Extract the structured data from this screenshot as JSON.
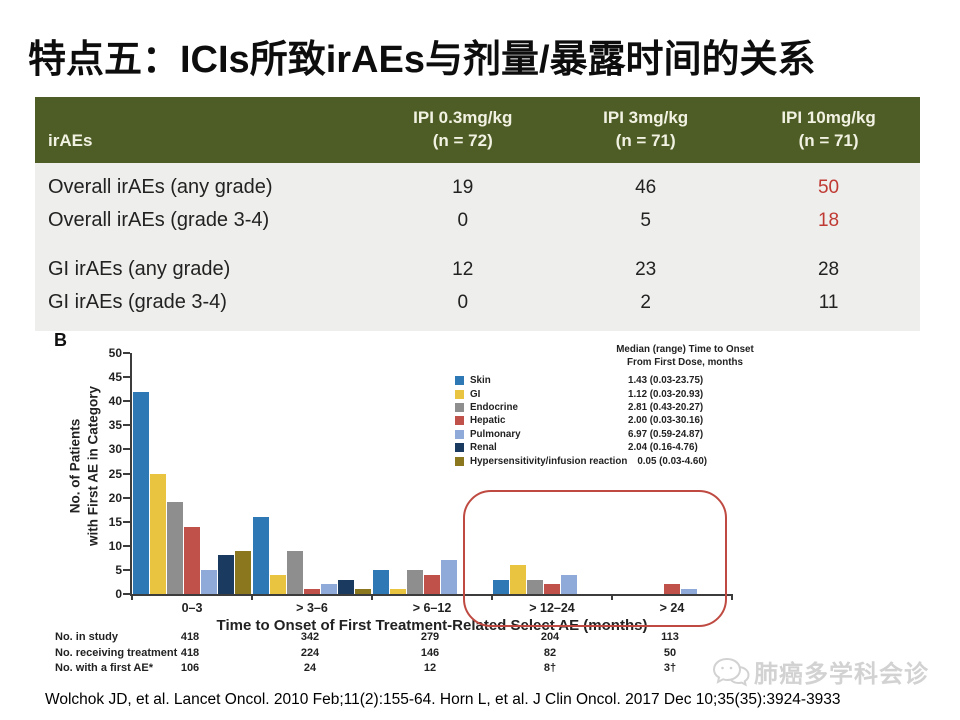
{
  "title": "特点五：ICIs所致irAEs与剂量/暴露时间的关系",
  "table": {
    "header_first": "irAEs",
    "columns": [
      {
        "dose": "IPI 0.3mg/kg",
        "n": "(n = 72)"
      },
      {
        "dose": "IPI 3mg/kg",
        "n": "(n = 71)"
      },
      {
        "dose": "IPI 10mg/kg",
        "n": "(n = 71)"
      }
    ],
    "rows": [
      {
        "label": "Overall irAEs (any grade)",
        "values": [
          "19",
          "46",
          "50"
        ],
        "red": [
          false,
          false,
          true
        ],
        "gap_before": false
      },
      {
        "label": "Overall irAEs (grade 3-4)",
        "values": [
          "0",
          "5",
          "18"
        ],
        "red": [
          false,
          false,
          true
        ],
        "gap_before": false
      },
      {
        "label": "GI irAEs (any grade)",
        "values": [
          "12",
          "23",
          "28"
        ],
        "red": [
          false,
          false,
          false
        ],
        "gap_before": true
      },
      {
        "label": "GI irAEs (grade 3-4)",
        "values": [
          "0",
          "2",
          "11"
        ],
        "red": [
          false,
          false,
          false
        ],
        "gap_before": false
      }
    ],
    "colors": {
      "header_bg": "#4e5d26",
      "header_fg": "#f2f2e3",
      "body_bg": "#eeeeec",
      "highlight_red": "#c03a34"
    }
  },
  "chart_data": {
    "type": "bar",
    "panel_label": "B",
    "ylabel_line1": "No. of Patients",
    "ylabel_line2": "with First AE in Category",
    "xlabel": "Time to Onset of First Treatment-Related Select AE (months)",
    "ylim": [
      0,
      50
    ],
    "ytick_step": 5,
    "grid": false,
    "legend_position": "top-right",
    "legend_title_line1": "Median (range) Time to Onset",
    "legend_title_line2": "From First Dose, months",
    "categories": [
      "0–3",
      "> 3–6",
      "> 6–12",
      "> 12–24",
      "> 24"
    ],
    "series": [
      {
        "name": "Skin",
        "color": "#2e78b5",
        "median_range": "1.43 (0.03-23.75)",
        "values": [
          42,
          16,
          5,
          3,
          0
        ]
      },
      {
        "name": "GI",
        "color": "#e9c440",
        "median_range": "1.12 (0.03-20.93)",
        "values": [
          25,
          4,
          1,
          6,
          0
        ]
      },
      {
        "name": "Endocrine",
        "color": "#8e8e8e",
        "median_range": "2.81 (0.43-20.27)",
        "values": [
          19,
          9,
          5,
          3,
          0
        ]
      },
      {
        "name": "Hepatic",
        "color": "#c0504a",
        "median_range": "2.00 (0.03-30.16)",
        "values": [
          14,
          1,
          4,
          2,
          2
        ]
      },
      {
        "name": "Pulmonary",
        "color": "#8fa9d9",
        "median_range": "6.97 (0.59-24.87)",
        "values": [
          5,
          2,
          7,
          4,
          1
        ]
      },
      {
        "name": "Renal",
        "color": "#1b3a5f",
        "median_range": "2.04 (0.16-4.76)",
        "values": [
          8,
          3,
          0,
          0,
          0
        ]
      },
      {
        "name": "Hypersensitivity/infusion reaction",
        "color": "#8b771d",
        "median_range": "0.05 (0.03-4.60)",
        "values": [
          9,
          1,
          0,
          0,
          0
        ]
      }
    ],
    "footer_rows": [
      {
        "label": "No. in study",
        "values": [
          "418",
          "342",
          "279",
          "204",
          "113"
        ]
      },
      {
        "label": "No. receiving treatment",
        "values": [
          "418",
          "224",
          "146",
          "82",
          "50"
        ]
      },
      {
        "label": "No. with a first AE*",
        "values": [
          "106",
          "24",
          "12",
          "8†",
          "3†"
        ]
      }
    ],
    "annotation": {
      "shape": "rounded-rect",
      "color": "#bf4a42",
      "highlights": [
        "> 12–24",
        "> 24"
      ]
    }
  },
  "citation": "Wolchok JD, et al. Lancet Oncol. 2010 Feb;11(2):155-64. Horn L, et al. J Clin Oncol. 2017 Dec 10;35(35):3924-3933",
  "watermark": {
    "text": "肺癌多学科会诊"
  }
}
